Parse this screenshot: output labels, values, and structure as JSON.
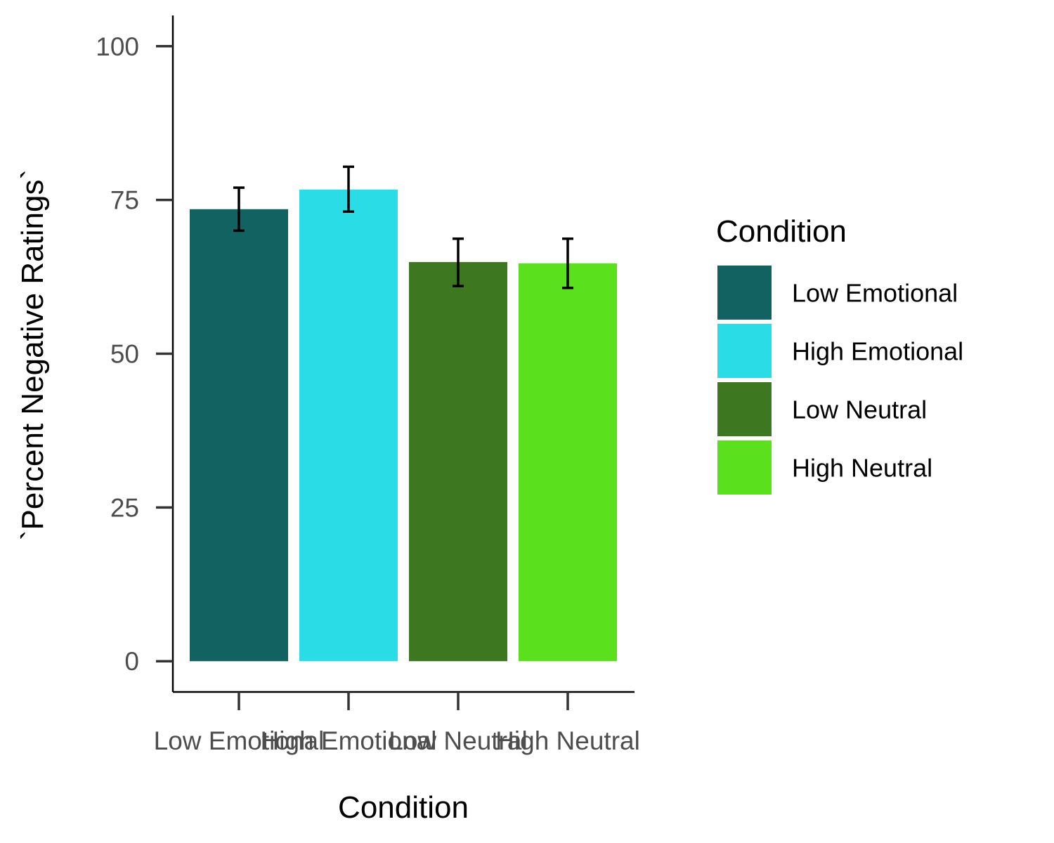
{
  "chart_data": {
    "type": "bar",
    "categories": [
      "Low Emotional",
      "High Emotional",
      "Low Neutral",
      "High Neutral"
    ],
    "values": [
      73.5,
      76.7,
      64.9,
      64.7
    ],
    "errors": [
      [
        70.0,
        77.0
      ],
      [
        73.1,
        80.4
      ],
      [
        61.0,
        68.7
      ],
      [
        60.7,
        68.7
      ]
    ],
    "colors": [
      "#136262",
      "#29dce5",
      "#3d7720",
      "#5ae01c"
    ],
    "xlabel": "Condition",
    "ylabel": "`Percent Negative Ratings`",
    "ylim": [
      -5,
      105
    ],
    "yticks": [
      "0",
      "25",
      "50",
      "75",
      "100"
    ],
    "ytick_values": [
      0,
      25,
      50,
      75,
      100
    ],
    "grid": false,
    "legend": {
      "title": "Condition",
      "placement": "right",
      "items": [
        "Low Emotional",
        "High Emotional",
        "Low Neutral",
        "High Neutral"
      ]
    }
  }
}
